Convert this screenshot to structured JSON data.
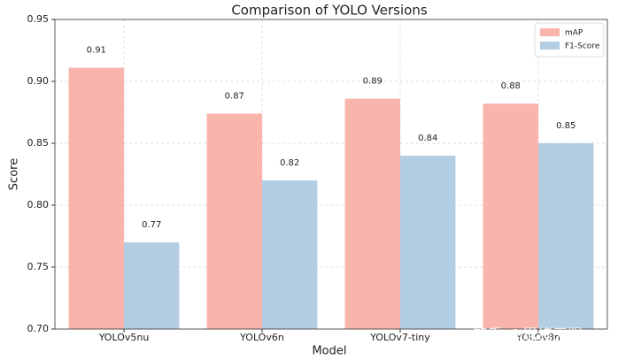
{
  "chart_data": {
    "type": "bar",
    "title": "Comparison of YOLO Versions",
    "x_label": "Model",
    "y_label": "Score",
    "categories": [
      "YOLOv5nu",
      "YOLOv6n",
      "YOLOv7-tiny",
      "YOLOv8n"
    ],
    "series": [
      {
        "name": "mAP",
        "color": "#f9b4ab",
        "values": [
          0.911,
          0.874,
          0.886,
          0.882
        ],
        "value_labels": [
          "0.91",
          "0.87",
          "0.89",
          "0.88"
        ]
      },
      {
        "name": "F1-Score",
        "color": "#b3cde3",
        "values": [
          0.77,
          0.82,
          0.84,
          0.85
        ]
      }
    ],
    "ylim": [
      0.7,
      0.95
    ],
    "yticks": [
      {
        "value": 0.7,
        "label": "0.70"
      },
      0.75,
      {
        "value": 0.8,
        "label": "0.80"
      },
      0.85,
      {
        "value": 0.9,
        "label": "0.90"
      },
      0.95
    ],
    "grid": true,
    "legend": "upper right",
    "watermark": "知乎 @思绪无限"
  }
}
